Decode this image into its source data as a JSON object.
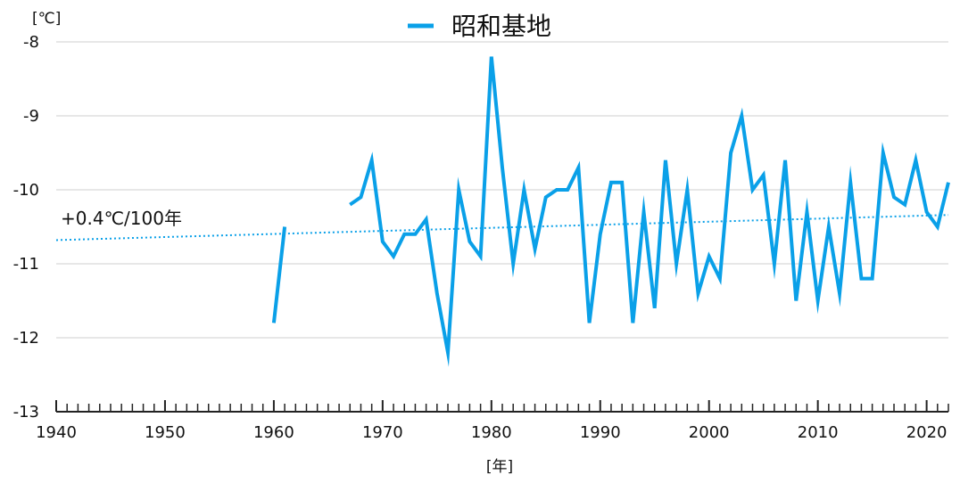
{
  "chart_data": {
    "type": "line",
    "series": [
      {
        "name": "昭和基地",
        "color": "#0aa0e8",
        "segments": [
          [
            [
              1960,
              -11.8
            ],
            [
              1961,
              -10.5
            ]
          ],
          [
            [
              1967,
              -10.2
            ],
            [
              1968,
              -10.1
            ],
            [
              1969,
              -9.6
            ],
            [
              1970,
              -10.7
            ],
            [
              1971,
              -10.9
            ],
            [
              1972,
              -10.6
            ],
            [
              1973,
              -10.6
            ],
            [
              1974,
              -10.4
            ],
            [
              1975,
              -11.4
            ],
            [
              1976,
              -12.2
            ],
            [
              1977,
              -10.0
            ],
            [
              1978,
              -10.7
            ],
            [
              1979,
              -10.9
            ],
            [
              1980,
              -8.2
            ],
            [
              1981,
              -9.7
            ],
            [
              1982,
              -11.0
            ],
            [
              1983,
              -10.0
            ],
            [
              1984,
              -10.8
            ],
            [
              1985,
              -10.1
            ],
            [
              1986,
              -10.0
            ],
            [
              1987,
              -10.0
            ],
            [
              1988,
              -9.7
            ],
            [
              1989,
              -11.8
            ],
            [
              1990,
              -10.6
            ],
            [
              1991,
              -9.9
            ],
            [
              1992,
              -9.9
            ],
            [
              1993,
              -11.8
            ],
            [
              1994,
              -10.3
            ],
            [
              1995,
              -11.6
            ],
            [
              1996,
              -9.6
            ],
            [
              1997,
              -11.0
            ],
            [
              1998,
              -10.0
            ],
            [
              1999,
              -11.4
            ],
            [
              2000,
              -10.9
            ],
            [
              2001,
              -11.2
            ],
            [
              2002,
              -9.5
            ],
            [
              2003,
              -9.0
            ],
            [
              2004,
              -10.0
            ],
            [
              2005,
              -9.8
            ],
            [
              2006,
              -11.0
            ],
            [
              2007,
              -9.6
            ],
            [
              2008,
              -11.5
            ],
            [
              2009,
              -10.3
            ],
            [
              2010,
              -11.5
            ],
            [
              2011,
              -10.5
            ],
            [
              2012,
              -11.4
            ],
            [
              2013,
              -9.9
            ],
            [
              2014,
              -11.2
            ],
            [
              2015,
              -11.2
            ],
            [
              2016,
              -9.5
            ],
            [
              2017,
              -10.1
            ],
            [
              2018,
              -10.2
            ],
            [
              2019,
              -9.6
            ],
            [
              2020,
              -10.3
            ],
            [
              2021,
              -10.5
            ],
            [
              2022,
              -9.9
            ]
          ]
        ]
      }
    ],
    "trend": {
      "x": [
        1940,
        2022
      ],
      "y": [
        -10.68,
        -10.34
      ],
      "label": "+0.4℃/100年",
      "style": "dotted"
    },
    "xlim": [
      1940,
      2022
    ],
    "ylim": [
      -13,
      -8
    ],
    "x_ticks": [
      1940,
      1950,
      1960,
      1970,
      1980,
      1990,
      2000,
      2010,
      2020
    ],
    "y_ticks": [
      -8,
      -9,
      -10,
      -11,
      -12,
      -13
    ],
    "x_tick_labels": [
      "1940",
      "1950",
      "1960",
      "1970",
      "1980",
      "1990",
      "2000",
      "2010",
      "2020"
    ],
    "y_tick_labels": [
      "-8",
      "-9",
      "-10",
      "-11",
      "-12",
      "-13"
    ],
    "xlabel": "[年]",
    "ylabel": "[℃]",
    "grid": "horizontal",
    "legend_position": "top-center"
  }
}
